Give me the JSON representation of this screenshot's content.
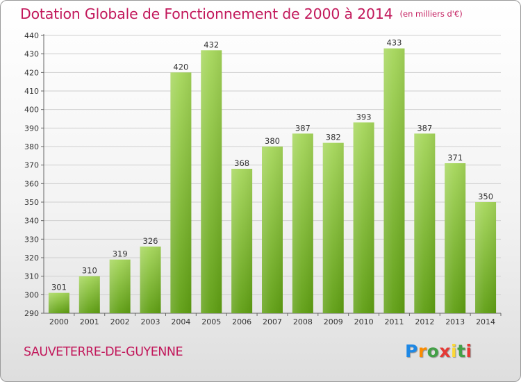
{
  "header": {
    "title": "Dotation Globale de Fonctionnement de 2000 à 2014",
    "unit": "(en milliers d'€)"
  },
  "footer": {
    "city": "SAUVETERRE-DE-GUYENNE",
    "logo": "Proxiti"
  },
  "colors": {
    "accent": "#c2185b",
    "bar_light": "#a5d65a",
    "bar_dark": "#5e9e12",
    "grid": "#cfcfcf"
  },
  "chart_data": {
    "type": "bar",
    "title": "Dotation Globale de Fonctionnement de 2000 à 2014",
    "subtitle": "(en milliers d'€)",
    "xlabel": "",
    "ylabel": "",
    "categories": [
      "2000",
      "2001",
      "2002",
      "2003",
      "2004",
      "2005",
      "2006",
      "2007",
      "2008",
      "2009",
      "2010",
      "2011",
      "2012",
      "2013",
      "2014"
    ],
    "values": [
      301,
      310,
      319,
      326,
      420,
      432,
      368,
      380,
      387,
      382,
      393,
      433,
      387,
      371,
      350
    ],
    "data_labels": [
      "301",
      "310",
      "319",
      "326",
      "420",
      "432",
      "368",
      "380",
      "387",
      "382",
      "393",
      "433",
      "387",
      "371",
      "350"
    ],
    "ylim": [
      290,
      440
    ],
    "yticks": [
      290,
      300,
      310,
      320,
      330,
      340,
      350,
      360,
      370,
      380,
      390,
      400,
      410,
      420,
      430,
      440
    ],
    "grid": true,
    "legend": "none"
  }
}
